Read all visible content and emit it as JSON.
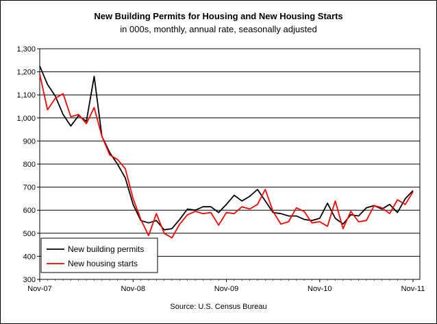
{
  "chart_data": {
    "type": "line",
    "title": "New Building Permits for Housing and New Housing Starts",
    "subtitle": "in 000s, monthly, annual rate, seasonally adjusted",
    "source": "Source: U.S. Census Bureau",
    "xlabel": "",
    "ylabel": "",
    "x_ticks": [
      "Nov-07",
      "Nov-08",
      "Nov-09",
      "Nov-10",
      "Nov-11"
    ],
    "x": [
      "Nov-07",
      "Dec-07",
      "Jan-08",
      "Feb-08",
      "Mar-08",
      "Apr-08",
      "May-08",
      "Jun-08",
      "Jul-08",
      "Aug-08",
      "Sep-08",
      "Oct-08",
      "Nov-08",
      "Dec-08",
      "Jan-09",
      "Feb-09",
      "Mar-09",
      "Apr-09",
      "May-09",
      "Jun-09",
      "Jul-09",
      "Aug-09",
      "Sep-09",
      "Oct-09",
      "Nov-09",
      "Dec-09",
      "Jan-10",
      "Feb-10",
      "Mar-10",
      "Apr-10",
      "May-10",
      "Jun-10",
      "Jul-10",
      "Aug-10",
      "Sep-10",
      "Oct-10",
      "Nov-10",
      "Dec-10",
      "Jan-11",
      "Feb-11",
      "Mar-11",
      "Apr-11",
      "May-11",
      "Jun-11",
      "Jul-11",
      "Aug-11",
      "Sep-11",
      "Oct-11",
      "Nov-11"
    ],
    "y_ticks": [
      "300",
      "400",
      "500",
      "600",
      "700",
      "800",
      "900",
      "1,000",
      "1,100",
      "1,200",
      "1,300"
    ],
    "ylim": [
      300,
      1300
    ],
    "grid": true,
    "legend_position": "bottom-left",
    "series": [
      {
        "name": "New building permits",
        "color": "#000000",
        "values": [
          1225,
          1145,
          1095,
          1015,
          965,
          1010,
          985,
          1180,
          920,
          850,
          800,
          740,
          625,
          555,
          545,
          555,
          515,
          520,
          560,
          605,
          600,
          615,
          615,
          590,
          625,
          665,
          640,
          660,
          690,
          640,
          590,
          585,
          575,
          575,
          560,
          555,
          565,
          630,
          565,
          540,
          580,
          575,
          610,
          620,
          605,
          625,
          590,
          650,
          685
        ]
      },
      {
        "name": "New housing starts",
        "color": "#ff0000",
        "values": [
          1190,
          1035,
          1085,
          1105,
          1005,
          1015,
          975,
          1045,
          920,
          840,
          820,
          780,
          650,
          560,
          490,
          585,
          500,
          480,
          540,
          580,
          595,
          585,
          590,
          535,
          590,
          585,
          615,
          605,
          625,
          690,
          595,
          540,
          550,
          610,
          595,
          545,
          550,
          530,
          640,
          520,
          595,
          550,
          555,
          620,
          610,
          585,
          645,
          625,
          680
        ]
      }
    ]
  }
}
